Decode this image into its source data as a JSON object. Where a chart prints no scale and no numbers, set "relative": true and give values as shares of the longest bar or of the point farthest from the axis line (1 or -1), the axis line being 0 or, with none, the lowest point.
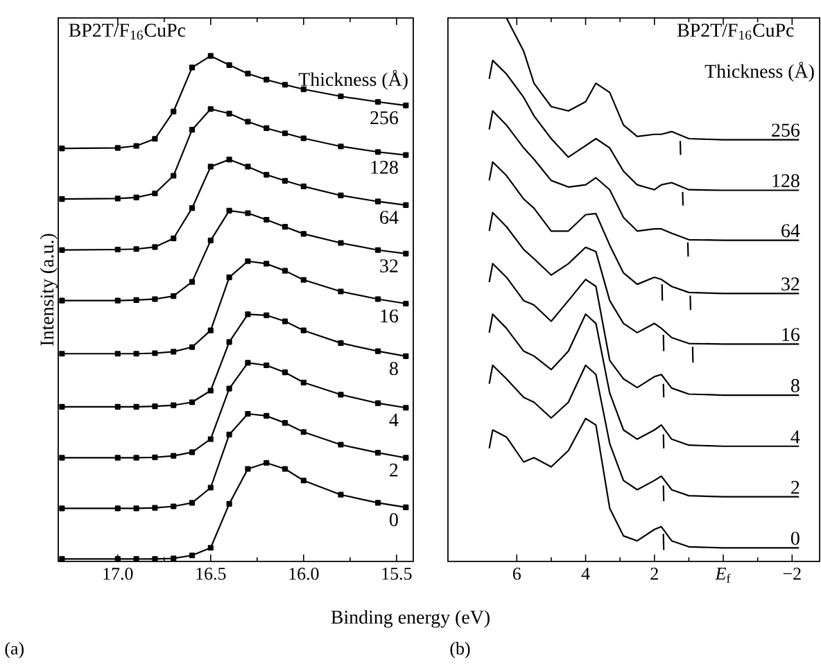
{
  "chart_data": [
    {
      "type": "line",
      "title": "BP2T/F$_{16}$CuPc",
      "legend_title": "Thickness (Å)",
      "xlabel": "Binding energy (eV)",
      "ylabel": "Intensity (a.u.)",
      "relative": true,
      "marker": "square",
      "annotations": [
        "(a)"
      ],
      "xlim": [
        17.32,
        15.41
      ],
      "xticks": [
        {
          "value": 17,
          "label": "17.0"
        },
        16.5,
        {
          "value": 16,
          "label": "16.0"
        },
        15.5
      ],
      "x": [
        17.3,
        17.0,
        16.9,
        16.8,
        16.7,
        16.6,
        16.5,
        16.4,
        16.3,
        16.2,
        16.1,
        16.0,
        15.8,
        15.6,
        15.45
      ],
      "series": [
        {
          "name": "0",
          "color": "#000000",
          "values": [
            0.005,
            0.005,
            0.005,
            0.005,
            0.006,
            0.012,
            0.027,
            0.114,
            0.183,
            0.195,
            0.183,
            0.16,
            0.132,
            0.116,
            0.107
          ]
        },
        {
          "name": "2",
          "color": "#000000",
          "values": [
            0.105,
            0.105,
            0.105,
            0.106,
            0.109,
            0.116,
            0.146,
            0.251,
            0.292,
            0.288,
            0.274,
            0.256,
            0.231,
            0.215,
            0.205
          ]
        },
        {
          "name": "4",
          "color": "#000000",
          "values": [
            0.205,
            0.205,
            0.205,
            0.206,
            0.209,
            0.216,
            0.242,
            0.342,
            0.393,
            0.388,
            0.374,
            0.354,
            0.33,
            0.313,
            0.304
          ]
        },
        {
          "name": "8",
          "color": "#000000",
          "values": [
            0.306,
            0.306,
            0.306,
            0.307,
            0.309,
            0.315,
            0.338,
            0.434,
            0.489,
            0.487,
            0.475,
            0.457,
            0.432,
            0.416,
            0.406
          ]
        },
        {
          "name": "16",
          "color": "#000000",
          "values": [
            0.411,
            0.411,
            0.411,
            0.412,
            0.415,
            0.424,
            0.457,
            0.562,
            0.594,
            0.589,
            0.575,
            0.557,
            0.534,
            0.519,
            0.51
          ]
        },
        {
          "name": "32",
          "color": "#000000",
          "values": [
            0.516,
            0.516,
            0.517,
            0.519,
            0.525,
            0.553,
            0.635,
            0.694,
            0.689,
            0.676,
            0.662,
            0.648,
            0.63,
            0.616,
            0.609
          ]
        },
        {
          "name": "64",
          "color": "#000000",
          "values": [
            0.616,
            0.617,
            0.618,
            0.622,
            0.639,
            0.699,
            0.781,
            0.795,
            0.781,
            0.765,
            0.753,
            0.742,
            0.724,
            0.712,
            0.705
          ]
        },
        {
          "name": "128",
          "color": "#000000",
          "values": [
            0.717,
            0.718,
            0.72,
            0.728,
            0.763,
            0.854,
            0.895,
            0.886,
            0.87,
            0.857,
            0.847,
            0.837,
            0.821,
            0.81,
            0.804
          ]
        },
        {
          "name": "256",
          "color": "#000000",
          "values": [
            0.817,
            0.818,
            0.822,
            0.836,
            0.89,
            0.977,
            1.0,
            0.982,
            0.965,
            0.953,
            0.943,
            0.934,
            0.92,
            0.909,
            0.902
          ]
        }
      ]
    },
    {
      "type": "line",
      "title": "BP2T/F$_{16}$CuPc",
      "legend_title": "Thickness (Å)",
      "relative": true,
      "annotations": [
        "(b)"
      ],
      "xlim": [
        8.0,
        -2.8
      ],
      "xticks": [
        6,
        4,
        2,
        {
          "value": 0,
          "label": "*E*$_{f}$"
        },
        {
          "value": -2,
          "label": "−2"
        }
      ],
      "x": [
        6.8,
        6.7,
        6.3,
        5.8,
        5.5,
        5.0,
        4.5,
        4.0,
        3.7,
        3.3,
        2.9,
        2.5,
        2.0,
        1.8,
        1.5,
        1.0,
        0,
        -2.2
      ],
      "series": [
        {
          "name": "0",
          "color": "#000000",
          "values": [
            0.208,
            0.242,
            0.229,
            0.183,
            0.191,
            0.174,
            0.204,
            0.263,
            0.251,
            0.098,
            0.047,
            0.038,
            0.059,
            0.064,
            0.038,
            0.027,
            0.025,
            0.025
          ]
        },
        {
          "name": "2",
          "color": "#000000",
          "values": [
            0.327,
            0.361,
            0.336,
            0.302,
            0.293,
            0.264,
            0.293,
            0.361,
            0.344,
            0.217,
            0.149,
            0.132,
            0.149,
            0.157,
            0.132,
            0.121,
            0.119,
            0.119
          ]
        },
        {
          "name": "4",
          "color": "#000000",
          "values": [
            0.421,
            0.455,
            0.429,
            0.387,
            0.378,
            0.353,
            0.387,
            0.455,
            0.438,
            0.31,
            0.242,
            0.225,
            0.242,
            0.251,
            0.225,
            0.214,
            0.212,
            0.212
          ]
        },
        {
          "name": "8",
          "color": "#000000",
          "values": [
            0.514,
            0.548,
            0.523,
            0.48,
            0.472,
            0.442,
            0.48,
            0.519,
            0.506,
            0.37,
            0.336,
            0.32,
            0.34,
            0.344,
            0.319,
            0.308,
            0.306,
            0.306
          ]
        },
        {
          "name": "16",
          "color": "#000000",
          "values": [
            0.608,
            0.642,
            0.616,
            0.574,
            0.557,
            0.527,
            0.548,
            0.578,
            0.57,
            0.48,
            0.438,
            0.421,
            0.438,
            0.429,
            0.412,
            0.401,
            0.4,
            0.4
          ]
        },
        {
          "name": "32",
          "color": "#000000",
          "values": [
            0.701,
            0.735,
            0.71,
            0.667,
            0.65,
            0.608,
            0.608,
            0.638,
            0.64,
            0.582,
            0.531,
            0.51,
            0.523,
            0.519,
            0.506,
            0.495,
            0.493,
            0.493
          ]
        },
        {
          "name": "64",
          "color": "#000000",
          "values": [
            0.795,
            0.829,
            0.803,
            0.761,
            0.74,
            0.701,
            0.689,
            0.693,
            0.706,
            0.684,
            0.633,
            0.608,
            0.612,
            0.612,
            0.604,
            0.592,
            0.591,
            0.591
          ]
        },
        {
          "name": "128",
          "color": "#000000",
          "values": [
            0.888,
            0.922,
            0.897,
            0.854,
            0.82,
            0.778,
            0.744,
            0.765,
            0.778,
            0.761,
            0.718,
            0.693,
            0.684,
            0.693,
            0.697,
            0.684,
            0.683,
            0.683
          ]
        },
        {
          "name": "256",
          "color": "#000000",
          "values": [
            null,
            null,
            1.0,
            0.939,
            0.88,
            0.837,
            0.829,
            0.846,
            0.88,
            0.863,
            0.803,
            0.782,
            0.786,
            0.786,
            0.791,
            0.778,
            0.776,
            0.776
          ]
        },
        {
          "type": "line",
          "color": "#000000",
          "x": [
            1.25,
            1.24
          ],
          "values": [
            0.774,
            0.748
          ]
        },
        {
          "type": "line",
          "color": "#000000",
          "x": [
            1.18,
            1.17
          ],
          "values": [
            0.68,
            0.655
          ]
        },
        {
          "type": "line",
          "color": "#000000",
          "x": [
            1.03,
            1.02
          ],
          "values": [
            0.587,
            0.561
          ]
        },
        {
          "type": "line",
          "color": "#000000",
          "x": [
            1.78,
            1.77
          ],
          "values": [
            0.51,
            0.48
          ]
        },
        {
          "type": "line",
          "color": "#000000",
          "x": [
            0.96,
            0.95
          ],
          "values": [
            0.489,
            0.463
          ]
        },
        {
          "type": "line",
          "color": "#000000",
          "x": [
            1.74,
            1.73
          ],
          "values": [
            0.417,
            0.387
          ]
        },
        {
          "type": "line",
          "color": "#000000",
          "x": [
            0.89,
            0.88
          ],
          "values": [
            0.395,
            0.366
          ]
        },
        {
          "type": "line",
          "color": "#000000",
          "x": [
            1.74,
            1.73
          ],
          "values": [
            0.327,
            0.302
          ]
        },
        {
          "type": "line",
          "color": "#000000",
          "x": [
            1.74,
            1.73
          ],
          "values": [
            0.234,
            0.208
          ]
        },
        {
          "type": "line",
          "color": "#000000",
          "x": [
            1.74,
            1.73
          ],
          "values": [
            0.14,
            0.111
          ]
        },
        {
          "type": "line",
          "color": "#000000",
          "x": [
            1.74,
            1.73
          ],
          "values": [
            0.051,
            0.021
          ]
        }
      ]
    }
  ]
}
